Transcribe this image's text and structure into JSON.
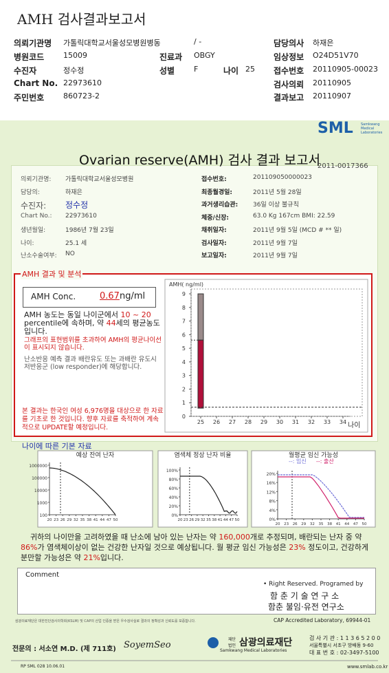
{
  "header": {
    "title": "AMH 검사결과보고서",
    "fields": [
      {
        "label": "의뢰기관명",
        "value": "가톨릭대학교서울성모병원병동"
      },
      {
        "value": "/ -"
      },
      {
        "label": "담당의사",
        "value": "하재은"
      },
      {
        "label": "병원코드",
        "value": "15009"
      },
      {
        "label": "진료과",
        "value": "OBGY"
      },
      {
        "label": "임상정보",
        "value": "O24D51V70"
      },
      {
        "label": "수진자",
        "value": "정수정"
      },
      {
        "label": "성별",
        "value": "F"
      },
      {
        "label": "나이",
        "value": "25"
      },
      {
        "label": "접수번호",
        "value": "20110905-00023"
      },
      {
        "label": "Chart No.",
        "value": "22973610"
      },
      {
        "label": "검사의뢰",
        "value": "20110905"
      },
      {
        "label": "주민번호",
        "value": "860723-2"
      },
      {
        "label": "결과보고",
        "value": "20110907"
      }
    ]
  },
  "report": {
    "logo": "SML",
    "logo_sub": "Samkwang Medical Laboratories",
    "title": "Ovarian reserve(AMH) 검사 결과 보고서",
    "doc_no": "2011-0017366",
    "info": [
      {
        "label": "의뢰기관명:",
        "value": "가톨릭대학교서울성모병원"
      },
      {
        "label": "접수번호:",
        "value": "201109050000023"
      },
      {
        "label": "담당의:",
        "value": "하재은"
      },
      {
        "label": "최종월경일:",
        "value": "2011년 5월 28일"
      },
      {
        "label": "수진자:",
        "value": "정수정"
      },
      {
        "label": "과거생리습관:",
        "value": "36일 이상 불규칙"
      },
      {
        "label": "Chart No.:",
        "value": "22973610"
      },
      {
        "label": "체중/신장:",
        "value": "63.0 Kg   167cm   BMI:  22.59"
      },
      {
        "label": "생년월일:",
        "value": "1986년 7월 23일"
      },
      {
        "label": "채취일자:",
        "value": "2011년 9월 5일    (MCD # ** 일)"
      },
      {
        "label": "나이:",
        "value": "25.1 세"
      },
      {
        "label": "검사일자:",
        "value": "2011년 9월 7일"
      },
      {
        "label": "난소수술여부:",
        "value": "NO"
      },
      {
        "label": "보고일자:",
        "value": "2011년 9월 7일"
      }
    ]
  },
  "result": {
    "title": "AMH 결과 및 분석",
    "conc_label": "AMH Conc.",
    "conc_value": 0.67,
    "conc_unit": "ng/ml",
    "p1": [
      "AMH 농도는 동일 나이군에서 ",
      "10 ~ 20",
      " percentile에 속하며, 약 ",
      "44",
      "세의 평균농도입니다."
    ],
    "p2": "그래프의 표현범위를 초과하여 AMH의 평균나이선이 표시되지 않습니다.",
    "p3": "난소반응 예측 결과 배란유도 또는 과배란 유도시 저반응군 (low responder)에 해당합니다.",
    "p4": "본 결과는 한국인 여성 6,976명을 대상으로 한 자료를 기초로 한 것입니다. 향후 자료를 축적하여 계속적으로 UPDATE할 예정입니다.",
    "chart": {
      "type": "bar",
      "ylabel": "AMH( ng/ml)",
      "xlabel": "나이",
      "ylim": [
        0,
        9
      ],
      "yticks": [
        0,
        1,
        2,
        3,
        4,
        5,
        6,
        7,
        8,
        9
      ],
      "xticks": [
        25,
        26,
        27,
        28,
        29,
        30,
        31,
        32,
        33,
        34
      ],
      "bar_low": 0.6,
      "bar_high": 5.6,
      "bar_max": 9
    }
  },
  "basic": {
    "title": "나이에 따른 기본 자료",
    "charts": [
      {
        "title": "예상 잔여 난자",
        "log": true,
        "ylim": [
          100,
          1000000
        ],
        "yticks": [
          1000000,
          100000,
          10000,
          1000,
          100
        ],
        "xticks": [
          20,
          23,
          26,
          29,
          32,
          35,
          38,
          41,
          44,
          47,
          50
        ]
      },
      {
        "title": "염색체 정상 난자 비율",
        "ylim": [
          0,
          100
        ],
        "yticks": [
          {
            "value": 100,
            "label": "100%"
          },
          {
            "value": 80,
            "label": "80%"
          },
          {
            "value": 60,
            "label": "60%"
          },
          {
            "value": 40,
            "label": "40%"
          },
          {
            "value": 20,
            "label": "20%"
          },
          {
            "value": 0,
            "label": "0%"
          }
        ],
        "xticks": [
          20,
          23,
          26,
          29,
          32,
          35,
          38,
          41,
          44,
          47,
          50
        ]
      },
      {
        "title": "월평균 임신 가능성",
        "legend": [
          {
            "name": "--: 임신",
            "color": "#6f6fd8"
          },
          {
            "name": "--: 출산",
            "color": "#d0206a"
          }
        ],
        "ylim": [
          0,
          20
        ],
        "yticks": [
          {
            "value": 20,
            "label": "20%"
          },
          {
            "value": 16,
            "label": "16%"
          },
          {
            "value": 12,
            "label": "12%"
          },
          {
            "value": 8,
            "label": "8%"
          },
          {
            "value": 4,
            "label": "4%"
          },
          {
            "value": 0,
            "label": "0%"
          }
        ],
        "xticks": [
          20,
          23,
          26,
          29,
          32,
          35,
          38,
          41,
          44,
          47,
          50
        ]
      }
    ]
  },
  "summary": [
    "귀하의 나이만을 고려하였을 때 난소에 남아 있는 난자는 약 ",
    "160,000",
    "개로 추정되며, 배란되는 난자 중 약 ",
    "86%",
    "가 염색체이상이 없는 건강한 난자일 것으로 예상됩니다. 월 평균 임신 가능성은 ",
    "23%",
    " 정도이고, 건강하게 분만할 가능성은 약 ",
    "21%",
    "입니다."
  ],
  "comment": {
    "label": "Comment",
    "rights": "• Right Reserved. Programed by",
    "lab1": "함 춘 기 술 연 구 소",
    "lab2": "함춘 불임·유전 연구소"
  },
  "footer": {
    "cap": "CAP Accredited Laboratory, 69944-01",
    "notice": "삼광의료재단은 대한진단검사의학회(KSLM) 및 CAP의 산업 인증을 받은 우수검사실로 결과의 정확성과 신뢰도를 보증합니다.",
    "doctor": "전문의 : 서소연 M.D. (제 711호)",
    "signature": "SoyemSeo",
    "org_prefix": "재단법인",
    "org": "삼광의료재단",
    "org_en": "Samkwang Medical Laboratories",
    "lab_no": "검 사 기 관 : 1 1 3 6 5 2 0 0",
    "address": "서울특별시 서초구 방배동 9-60",
    "phone": "대 표 번 호 : 02-3497-5100",
    "form": "RP SML 028 10.06.01",
    "web": "www.smlab.co.kr"
  }
}
